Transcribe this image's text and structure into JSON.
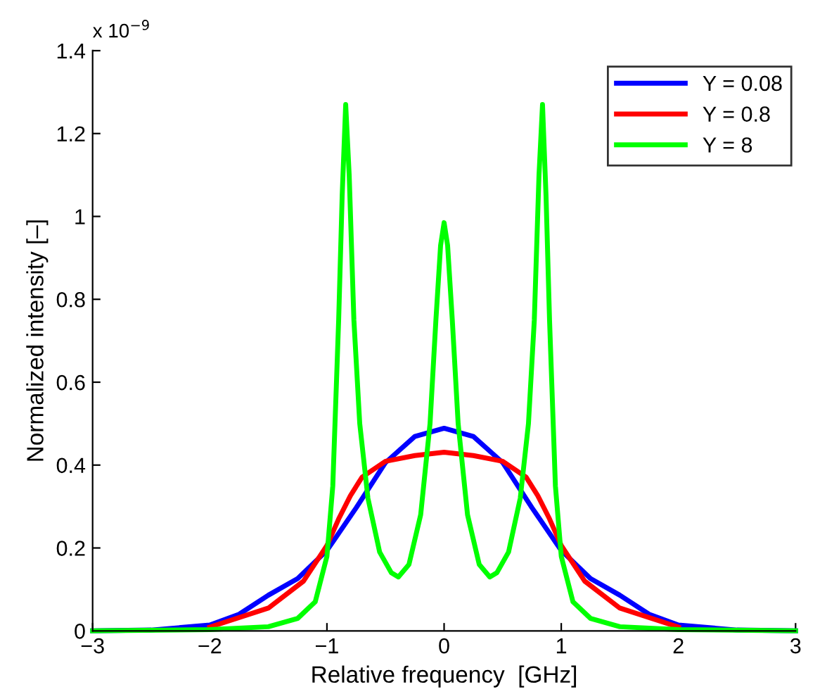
{
  "chart_data": {
    "type": "line",
    "xlabel": "Relative frequency  [GHz]",
    "ylabel": "Normalized intensity [–]",
    "annotations": [
      "x 10$^{−9}$"
    ],
    "xlim": [
      -3,
      3
    ],
    "ylim": [
      0,
      1.4
    ],
    "xticks": [
      {
        "value": -3,
        "label": "−3"
      },
      {
        "value": -2,
        "label": "−2"
      },
      {
        "value": -1,
        "label": "−1"
      },
      0,
      1,
      2,
      3
    ],
    "yticks": [
      0,
      0.2,
      0.4,
      0.6,
      0.8,
      1,
      1.2,
      1.4
    ],
    "grid": false,
    "legend": "top right",
    "line_style": "solid",
    "marker": "none",
    "series": [
      {
        "name": "Y = 0.08",
        "color": "#0000ff",
        "x": [
          -3,
          -2.5,
          -2,
          -1.75,
          -1.5,
          -1.25,
          -1,
          -0.75,
          -0.5,
          -0.25,
          0,
          0.25,
          0.5,
          0.75,
          1,
          1.25,
          1.5,
          1.75,
          2,
          2.5,
          3
        ],
        "values": [
          0,
          0.002,
          0.014,
          0.04,
          0.086,
          0.126,
          0.194,
          0.297,
          0.406,
          0.469,
          0.489,
          0.469,
          0.406,
          0.297,
          0.194,
          0.126,
          0.086,
          0.04,
          0.014,
          0.002,
          0
        ]
      },
      {
        "name": "Y = 0.8",
        "color": "#ff0000",
        "x": [
          -2,
          -1.5,
          -1.2,
          -1,
          -0.9,
          -0.8,
          -0.7,
          -0.5,
          -0.25,
          0,
          0.25,
          0.5,
          0.7,
          0.8,
          0.9,
          1,
          1.2,
          1.5,
          2
        ],
        "values": [
          0.009,
          0.055,
          0.12,
          0.206,
          0.27,
          0.326,
          0.371,
          0.409,
          0.423,
          0.431,
          0.423,
          0.409,
          0.371,
          0.326,
          0.27,
          0.206,
          0.12,
          0.055,
          0.009
        ]
      },
      {
        "name": "Y = 8",
        "color": "#00ff00",
        "x": [
          -3,
          -2,
          -1.5,
          -1.25,
          -1.1,
          -1,
          -0.95,
          -0.9,
          -0.87,
          -0.84,
          -0.81,
          -0.77,
          -0.72,
          -0.65,
          -0.55,
          -0.45,
          -0.39,
          -0.3,
          -0.2,
          -0.12,
          -0.07,
          -0.03,
          0,
          0.03,
          0.07,
          0.12,
          0.2,
          0.3,
          0.39,
          0.45,
          0.55,
          0.65,
          0.72,
          0.77,
          0.81,
          0.84,
          0.87,
          0.9,
          0.95,
          1,
          1.1,
          1.25,
          1.5,
          2,
          3
        ],
        "values": [
          0,
          0.003,
          0.01,
          0.03,
          0.07,
          0.18,
          0.35,
          0.75,
          1.05,
          1.27,
          1.1,
          0.75,
          0.5,
          0.32,
          0.19,
          0.14,
          0.13,
          0.16,
          0.28,
          0.5,
          0.75,
          0.93,
          0.985,
          0.93,
          0.75,
          0.5,
          0.28,
          0.16,
          0.13,
          0.14,
          0.19,
          0.32,
          0.5,
          0.75,
          1.1,
          1.27,
          1.05,
          0.75,
          0.35,
          0.18,
          0.07,
          0.03,
          0.01,
          0.003,
          0
        ]
      }
    ]
  }
}
